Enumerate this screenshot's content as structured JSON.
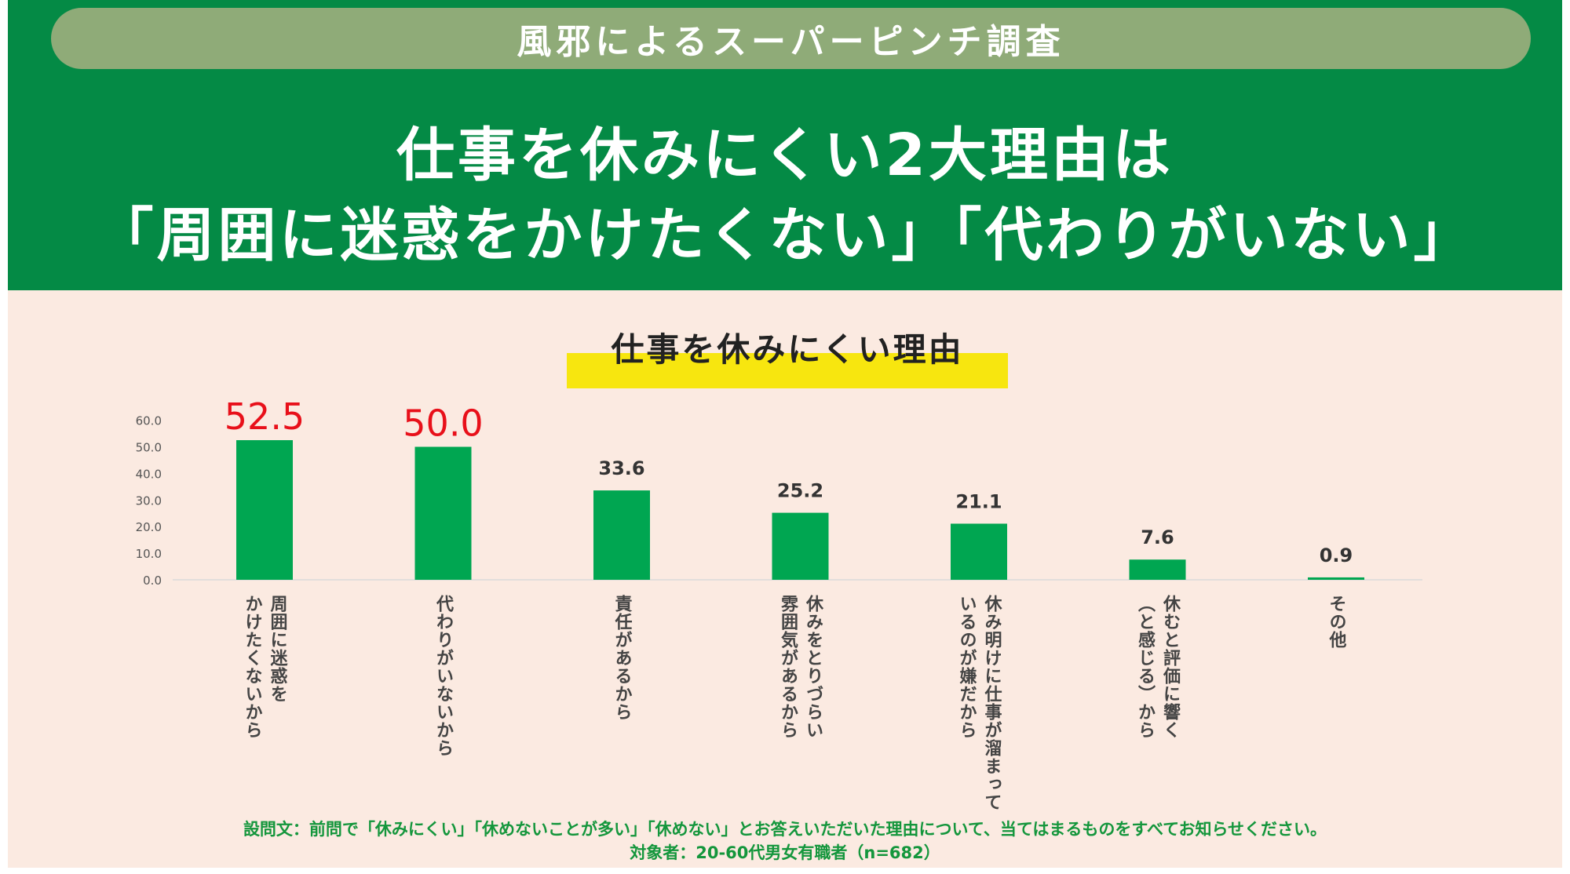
{
  "header": {
    "banner": "風邪によるスーパーピンチ調査",
    "headline_line1": "仕事を休みにくい2大理由は",
    "headline_line2": "「周囲に迷惑をかけたくない」「代わりがいない」"
  },
  "colors": {
    "header_green": "#048a45",
    "banner_pill": "#8fab78",
    "panel_bg": "#fbeae1",
    "bar_green": "#00a651",
    "highlight_yellow": "#f7e60f",
    "emphasis_red": "#e8101a",
    "footer_text": "#14963c"
  },
  "chart_data": {
    "type": "bar",
    "title": "仕事を休みにくい理由",
    "ylim": [
      0,
      60
    ],
    "yticks": [
      "60.0",
      "50.0",
      "40.0",
      "30.0",
      "20.0",
      "10.0",
      "0.0"
    ],
    "categories": [
      [
        "周囲に迷惑を",
        "かけたくないから"
      ],
      [
        "代わりがいないから"
      ],
      [
        "責任があるから"
      ],
      [
        "休みをとりづらい",
        "雰囲気があるから"
      ],
      [
        "休み明けに仕事が溜まって",
        "いるのが嫌だから"
      ],
      [
        "休むと評価に響く",
        "（と感じる）から"
      ],
      [
        "その他"
      ]
    ],
    "values": [
      52.5,
      50.0,
      33.6,
      25.2,
      21.1,
      7.6,
      0.9
    ],
    "value_labels": [
      "52.5",
      "50.0",
      "33.6",
      "25.2",
      "21.1",
      "7.6",
      "0.9"
    ],
    "highlighted": [
      true,
      true,
      false,
      false,
      false,
      false,
      false
    ],
    "grid": false
  },
  "footer": {
    "question": "設問文：前問で「休みにくい」「休めないことが多い」「休めない」とお答えいただいた理由について、当てはまるものをすべてお知らせください。",
    "respondents": "対象者：20-60代男女有職者（n=682）"
  }
}
